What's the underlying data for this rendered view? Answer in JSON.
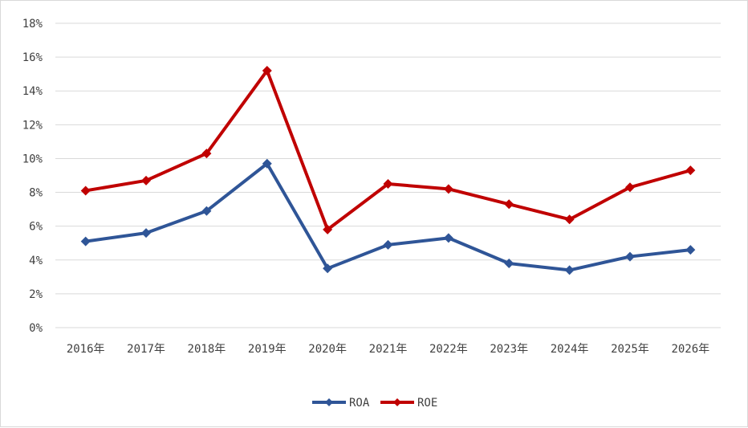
{
  "chart_data": {
    "type": "line",
    "categories": [
      "2016年",
      "2017年",
      "2018年",
      "2019年",
      "2020年",
      "2021年",
      "2022年",
      "2023年",
      "2024年",
      "2025年",
      "2026年"
    ],
    "series": [
      {
        "name": "ROA",
        "color": "#2f5597",
        "marker": "diamond",
        "values": [
          5.1,
          5.6,
          6.9,
          9.7,
          3.5,
          4.9,
          5.3,
          3.8,
          3.4,
          4.2,
          4.6
        ]
      },
      {
        "name": "ROE",
        "color": "#c00000",
        "marker": "diamond",
        "values": [
          8.1,
          8.7,
          10.3,
          15.2,
          5.8,
          8.5,
          8.2,
          7.3,
          6.4,
          8.3,
          9.3
        ]
      }
    ],
    "ylim": [
      0,
      18
    ],
    "yticks": [
      0,
      2,
      4,
      6,
      8,
      10,
      12,
      14,
      16,
      18
    ],
    "ytick_labels": [
      "0%",
      "2%",
      "4%",
      "6%",
      "8%",
      "10%",
      "12%",
      "14%",
      "16%",
      "18%"
    ],
    "grid": true,
    "legend_position": "bottom-center",
    "title": "",
    "xlabel": "",
    "ylabel": ""
  }
}
